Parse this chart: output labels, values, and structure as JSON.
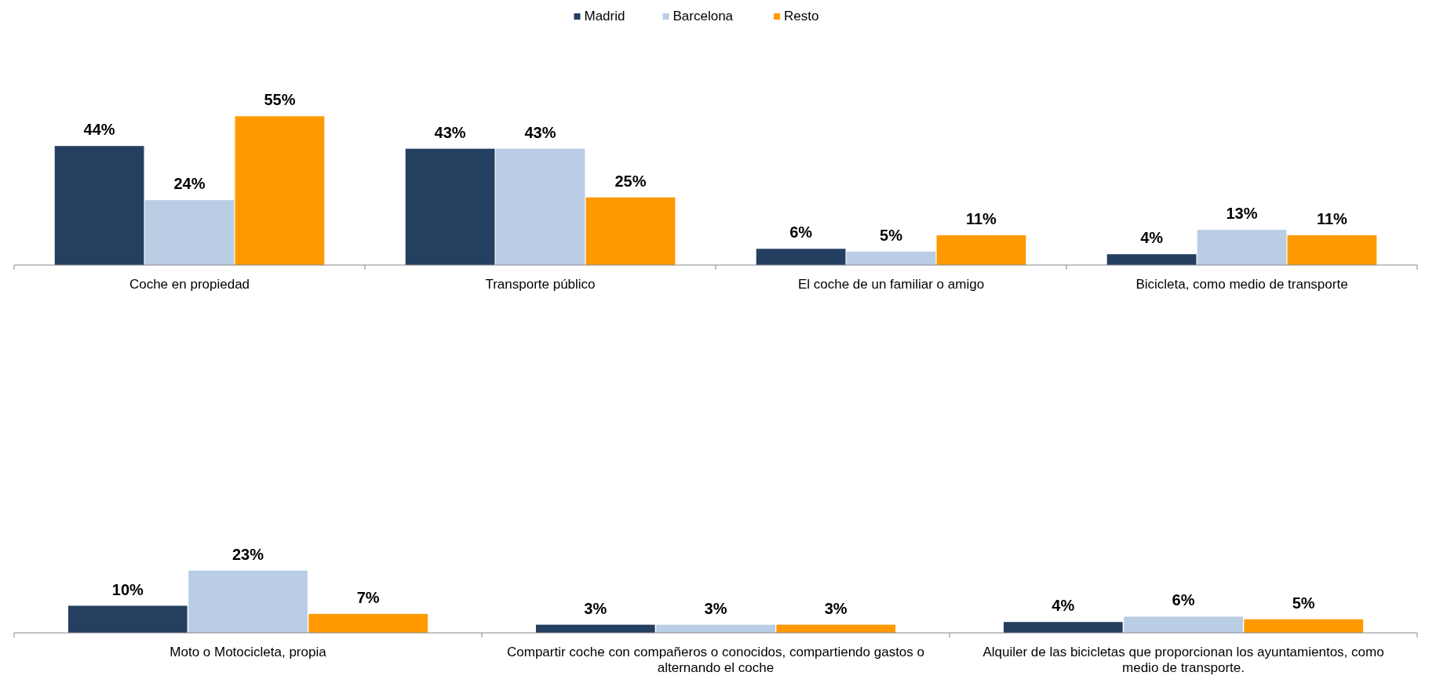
{
  "chart_data": [
    {
      "type": "bar",
      "categories": [
        "Coche en propiedad",
        "Transporte público",
        "El coche de un familiar o amigo",
        "Bicicleta, como medio de transporte"
      ],
      "series": [
        {
          "name": "Madrid",
          "color": "#243f60",
          "values": [
            44,
            43,
            6,
            4
          ],
          "value_labels": [
            "44%",
            "43%",
            "6%",
            "4%"
          ]
        },
        {
          "name": "Barcelona",
          "color": "#b9cde5",
          "values": [
            24,
            43,
            5,
            13
          ],
          "value_labels": [
            "24%",
            "43%",
            "5%",
            "13%"
          ]
        },
        {
          "name": "Resto",
          "color": "#ff9900",
          "values": [
            55,
            25,
            11,
            11
          ],
          "value_labels": [
            "55%",
            "25%",
            "11%",
            "11%"
          ]
        }
      ],
      "legend": "top"
    },
    {
      "type": "bar",
      "categories": [
        "Moto o Motocicleta, propia",
        "Compartir coche con compañeros o conocidos, compartiendo gastos o alternando el coche",
        "Alquiler de las bicicletas que proporcionan los ayuntamientos, como medio de transporte."
      ],
      "series": [
        {
          "color": "#243f60",
          "values": [
            10,
            3,
            4
          ],
          "value_labels": [
            "10%",
            "3%",
            "4%"
          ]
        },
        {
          "color": "#b9cde5",
          "values": [
            23,
            3,
            6
          ],
          "value_labels": [
            "23%",
            "3%",
            "6%"
          ]
        },
        {
          "color": "#ff9900",
          "values": [
            7,
            3,
            5
          ],
          "value_labels": [
            "7%",
            "3%",
            "5%"
          ]
        }
      ],
      "legend": false
    }
  ]
}
